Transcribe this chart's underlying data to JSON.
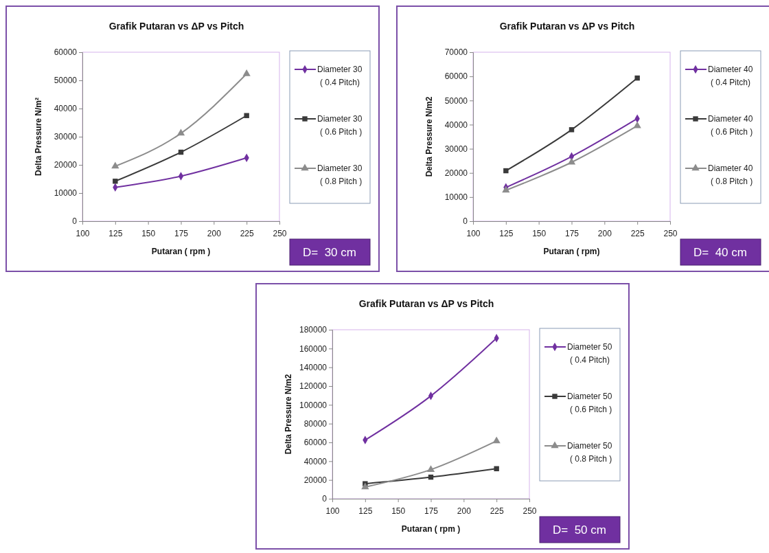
{
  "chart_data": [
    {
      "type": "line",
      "title": "Grafik Putaran vs ΔP vs Pitch",
      "xlabel": "Putaran ( rpm )",
      "ylabel": "Delta Pressure N/m²",
      "x": [
        125,
        175,
        225
      ],
      "xlim": [
        100,
        250
      ],
      "xticks": [
        100,
        125,
        150,
        175,
        200,
        225,
        250
      ],
      "ylim": [
        0,
        60000
      ],
      "yticks": [
        0,
        10000,
        20000,
        30000,
        40000,
        50000,
        60000
      ],
      "legend": "right",
      "annotations": [
        "D=  30 cm"
      ],
      "series": [
        {
          "name": "Diameter 30\n( 0.4 Pitch)",
          "color": "#7030a0",
          "marker": "diamond",
          "values": [
            12000,
            16000,
            22500
          ]
        },
        {
          "name": "Diameter 30\n( 0.6 Pitch )",
          "color": "#3a3a3a",
          "marker": "square",
          "values": [
            14200,
            24500,
            37500
          ]
        },
        {
          "name": "Diameter 30\n( 0.8 Pitch )",
          "color": "#8c8c8c",
          "marker": "triangle",
          "values": [
            19500,
            31200,
            52300
          ]
        }
      ]
    },
    {
      "type": "line",
      "title": "Grafik Putaran vs ΔP vs Pitch",
      "xlabel": "Putaran ( rpm)",
      "ylabel": "Delta Pressure N/m2",
      "x": [
        125,
        175,
        225
      ],
      "xlim": [
        100,
        250
      ],
      "xticks": [
        100,
        125,
        150,
        175,
        200,
        225,
        250
      ],
      "ylim": [
        0,
        70000
      ],
      "yticks": [
        0,
        10000,
        20000,
        30000,
        40000,
        50000,
        60000,
        70000
      ],
      "legend": "right",
      "annotations": [
        "D=  40 cm"
      ],
      "series": [
        {
          "name": "Diameter 40\n( 0.4 Pitch)",
          "color": "#7030a0",
          "marker": "diamond",
          "values": [
            14000,
            26800,
            42500
          ]
        },
        {
          "name": "Diameter 40\n( 0.6 Pitch )",
          "color": "#3a3a3a",
          "marker": "square",
          "values": [
            20900,
            37900,
            59300
          ]
        },
        {
          "name": "Diameter 40\n( 0.8 Pitch )",
          "color": "#8c8c8c",
          "marker": "triangle",
          "values": [
            12800,
            24400,
            39500
          ]
        }
      ]
    },
    {
      "type": "line",
      "title": "Grafik Putaran vs ΔP vs Pitch",
      "xlabel": "Putaran ( rpm )",
      "ylabel": "Delta Pressure N/m2",
      "x": [
        125,
        175,
        225
      ],
      "xlim": [
        100,
        250
      ],
      "xticks": [
        100,
        125,
        150,
        175,
        200,
        225,
        250
      ],
      "ylim": [
        0,
        180000
      ],
      "yticks": [
        0,
        20000,
        40000,
        60000,
        80000,
        100000,
        120000,
        140000,
        160000,
        180000
      ],
      "legend": "right",
      "annotations": [
        "D=  50 cm"
      ],
      "series": [
        {
          "name": "Diameter 50\n( 0.4 Pitch)",
          "color": "#7030a0",
          "marker": "diamond",
          "values": [
            62500,
            109500,
            171000
          ]
        },
        {
          "name": "Diameter 50\n( 0.6 Pitch )",
          "color": "#3a3a3a",
          "marker": "square",
          "values": [
            16000,
            23000,
            32000
          ]
        },
        {
          "name": "Diameter 50\n( 0.8 Pitch )",
          "color": "#8c8c8c",
          "marker": "triangle",
          "values": [
            12500,
            31000,
            61500
          ]
        }
      ]
    }
  ]
}
